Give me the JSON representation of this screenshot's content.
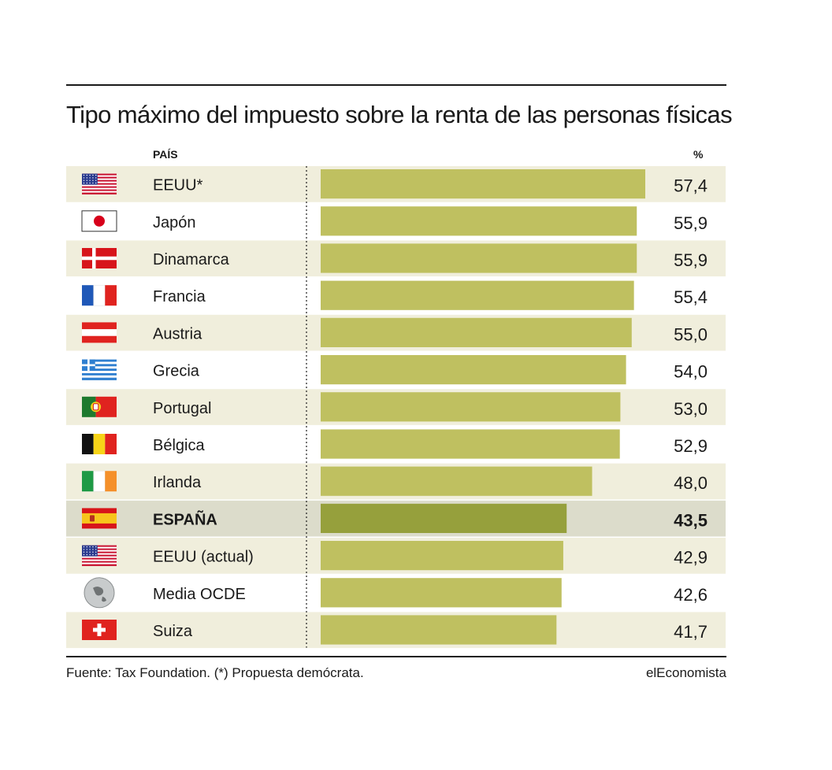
{
  "title": "Tipo máximo del impuesto sobre la renta de las personas físicas",
  "header": {
    "country": "PAÍS",
    "unit": "%"
  },
  "source": "Fuente: Tax Foundation. (*) Propuesta demócrata.",
  "brand": "elEconomista",
  "colors": {
    "bar": "#bfc060",
    "bar_highlight": "#96a03c",
    "row_alt": "#f0eedc",
    "row_highlight": "#dcdccb"
  },
  "chart_data": {
    "type": "bar",
    "orientation": "horizontal",
    "categories": [
      "EEUU*",
      "Japón",
      "Dinamarca",
      "Francia",
      "Austria",
      "Grecia",
      "Portugal",
      "Bélgica",
      "Irlanda",
      "ESPAÑA",
      "EEUU (actual)",
      "Media OCDE",
      "Suiza"
    ],
    "values": [
      57.4,
      55.9,
      55.9,
      55.4,
      55.0,
      54.0,
      53.0,
      52.9,
      48.0,
      43.5,
      42.9,
      42.6,
      41.7
    ],
    "value_labels": [
      "57,4",
      "55,9",
      "55,9",
      "55,4",
      "55,0",
      "54,0",
      "53,0",
      "52,9",
      "48,0",
      "43,5",
      "42,9",
      "42,6",
      "41,7"
    ],
    "flags": [
      "usa-flag-icon",
      "japan-flag-icon",
      "denmark-flag-icon",
      "france-flag-icon",
      "austria-flag-icon",
      "greece-flag-icon",
      "portugal-flag-icon",
      "belgium-flag-icon",
      "ireland-flag-icon",
      "spain-flag-icon",
      "usa-flag-icon",
      "globe-icon",
      "switzerland-flag-icon"
    ],
    "highlight": "ESPAÑA",
    "xlim": [
      0,
      60
    ],
    "grid": false
  }
}
